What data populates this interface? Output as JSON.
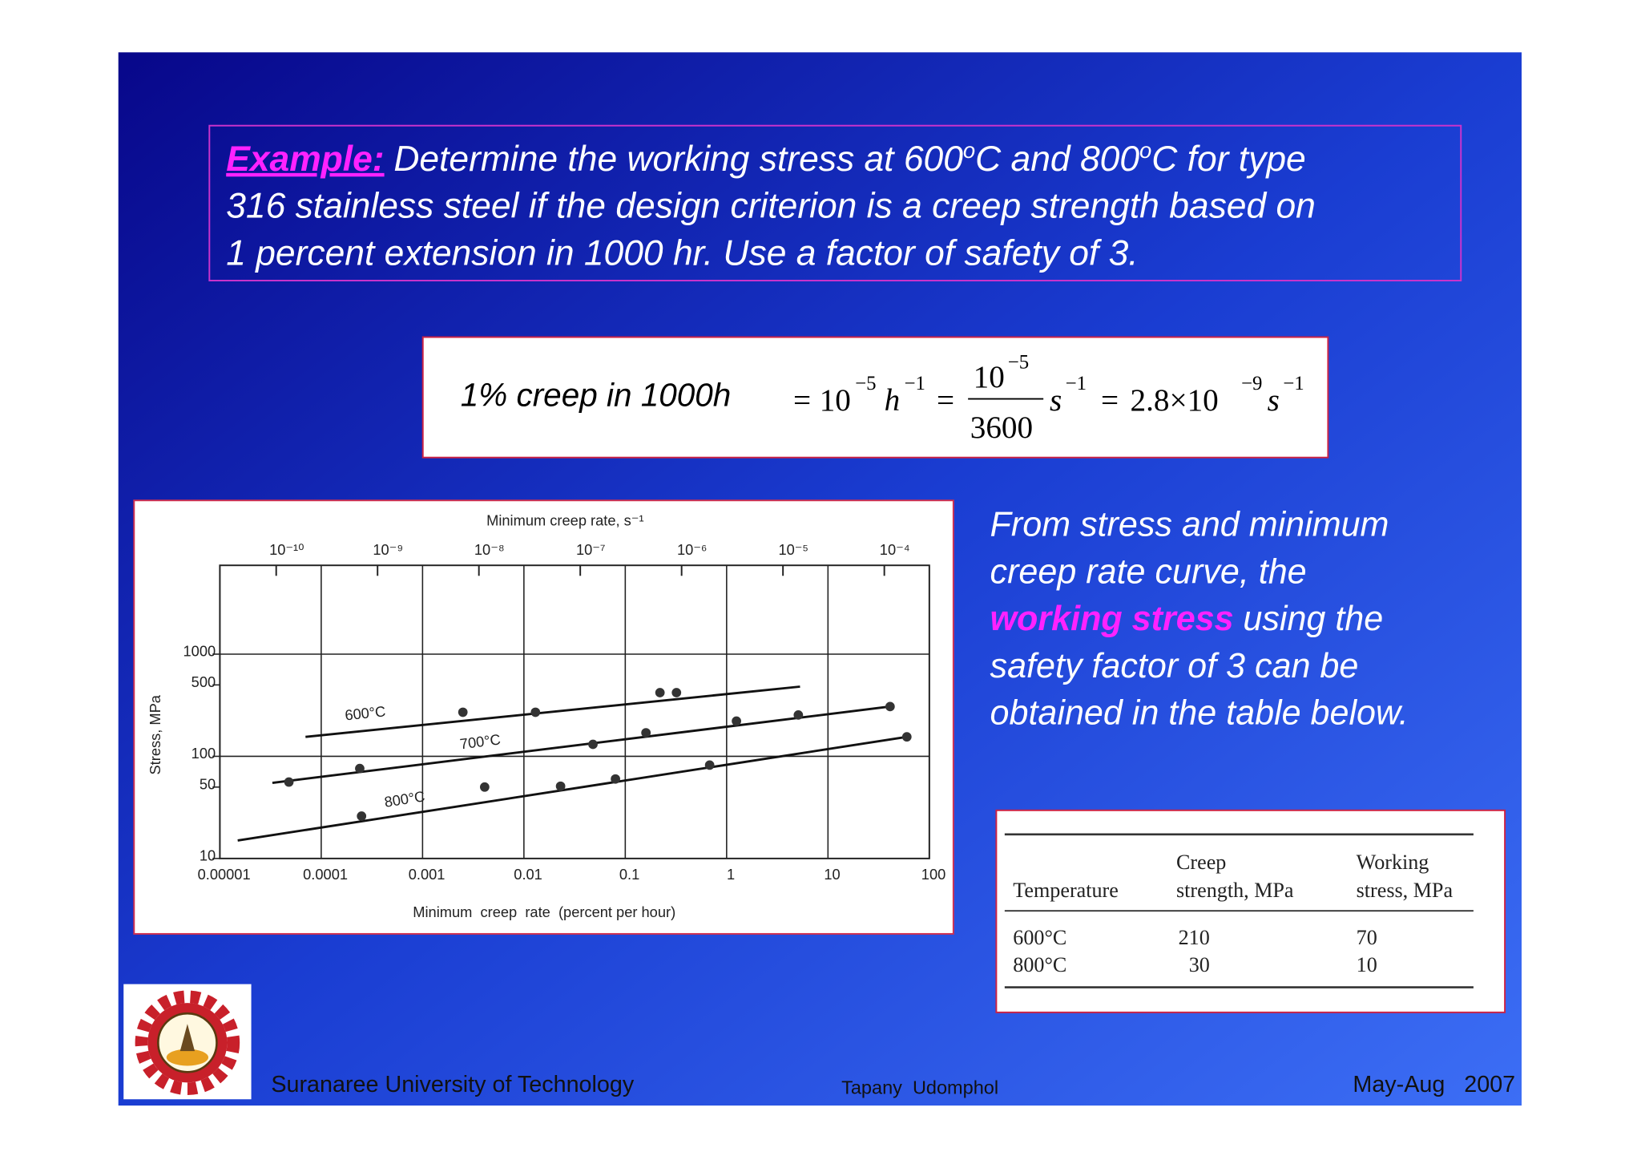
{
  "example": {
    "label": "Example:",
    "line1": [
      "Determine the working stress at 600",
      "o",
      "C and 800",
      "o",
      "C for type"
    ],
    "line2": "316 stainless steel if the design criterion is a creep strength based on",
    "line3": "1 percent extension in 1000 hr. Use a factor of safety of 3."
  },
  "equation": {
    "label": "1% creep in 1000h",
    "equals": "=",
    "base": "10",
    "exp_5": "−5",
    "h": "h",
    "exp_1": "−1",
    "denominator": "3600",
    "s": "s",
    "coefficient": "2.8×10",
    "exp_9": "−9"
  },
  "description": {
    "lines_before": [
      "From stress and minimum",
      "creep rate curve, the"
    ],
    "highlight": "working stress",
    "highlight_rest": "using the",
    "lines_after": [
      "safety factor of 3 can be",
      "obtained in the table below."
    ]
  },
  "table": {
    "columns": [
      [
        "Temperature"
      ],
      [
        "Creep",
        "strength, MPa"
      ],
      [
        "Working",
        "stress, MPa"
      ]
    ],
    "rows": [
      [
        "600°C",
        "210",
        "70"
      ],
      [
        "800°C",
        "30",
        "10"
      ]
    ]
  },
  "footer": {
    "institution": "Suranaree University of Technology",
    "author": "Tapany  Udomphol",
    "date": "May-Aug   2007"
  },
  "chart_data": {
    "type": "scatter",
    "x2_label": "Minimum creep rate, s⁻¹",
    "x_label": "Minimum  creep  rate  (percent per hour)",
    "y_label": "Stress, MPa",
    "xscale": "log",
    "yscale": "log",
    "xlim": [
      1e-05,
      100
    ],
    "xticks": [
      1e-05,
      0.0001,
      0.001,
      0.01,
      0.1,
      1,
      10,
      100
    ],
    "x2lim": [
      2.78e-11,
      0.000278
    ],
    "x2ticks": [
      {
        "value": 1e-10,
        "label": "10⁻¹⁰"
      },
      {
        "value": 1e-09,
        "label": "10⁻⁹"
      },
      {
        "value": 1e-08,
        "label": "10⁻⁸"
      },
      {
        "value": 1e-07,
        "label": "10⁻⁷"
      },
      {
        "value": 1e-06,
        "label": "10⁻⁶"
      },
      {
        "value": 1e-05,
        "label": "10⁻⁵"
      },
      {
        "value": 0.0001,
        "label": "10⁻⁴"
      }
    ],
    "ylim": [
      10,
      7400
    ],
    "yticks": [
      10,
      50,
      100,
      500,
      1000
    ],
    "grid": true,
    "series": [
      {
        "name": "600°C",
        "color": "#333333",
        "x": [
          0.0025,
          0.013,
          0.22,
          0.32
        ],
        "values": [
          270,
          270,
          420,
          420
        ],
        "fit_x": [
          7e-05,
          5.3
        ],
        "fit_values": [
          155,
          481
        ]
      },
      {
        "name": "700°C",
        "color": "#333333",
        "x": [
          4.8e-05,
          0.00024,
          0.048,
          0.16,
          1.25,
          5.1,
          41
        ],
        "values": [
          56,
          76,
          131,
          170,
          221,
          254,
          307
        ],
        "fit_x": [
          3.3e-05,
          41
        ],
        "fit_values": [
          55,
          307
        ]
      },
      {
        "name": "800°C",
        "color": "#333333",
        "x": [
          0.00025,
          0.0041,
          0.023,
          0.08,
          0.68,
          60
        ],
        "values": [
          26,
          50,
          51,
          60,
          82,
          155
        ],
        "fit_x": [
          1.5e-05,
          60
        ],
        "fit_values": [
          15,
          155
        ]
      }
    ]
  }
}
